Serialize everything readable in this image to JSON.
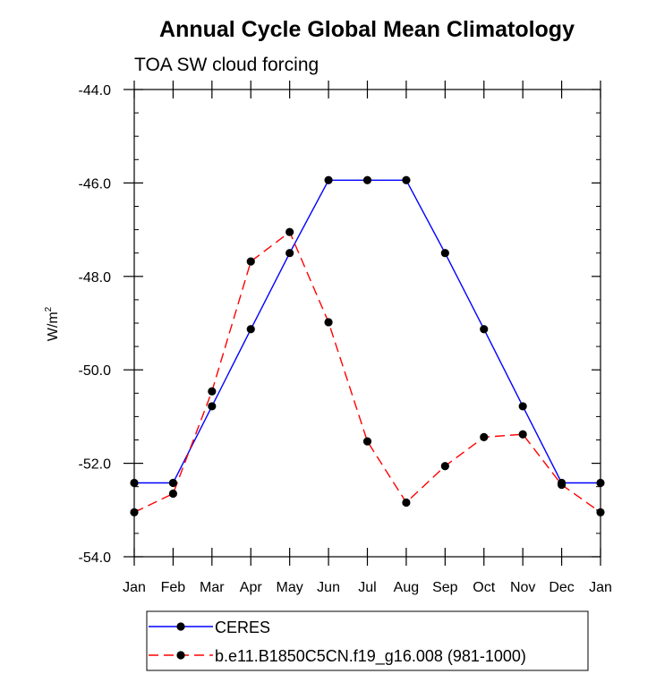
{
  "chart_data": {
    "type": "line",
    "title": "Annual Cycle Global Mean Climatology",
    "subtitle": "TOA SW cloud forcing",
    "ylabel": "W/m",
    "ylabel_sup": "2",
    "xlabel": "",
    "categories": [
      "Jan",
      "Feb",
      "Mar",
      "Apr",
      "May",
      "Jun",
      "Jul",
      "Aug",
      "Sep",
      "Oct",
      "Nov",
      "Dec",
      "Jan"
    ],
    "ylim": [
      -54.0,
      -44.0
    ],
    "yticks": [
      -54.0,
      -52.0,
      -50.0,
      -48.0,
      -46.0,
      -44.0
    ],
    "ytick_labels": [
      "-54.0",
      "-52.0",
      "-50.0",
      "-48.0",
      "-46.0",
      "-44.0"
    ],
    "grid": false,
    "legend_position": "bottom",
    "series": [
      {
        "name": "CERES",
        "color": "#0000ff",
        "style": "solid",
        "values": [
          -52.42,
          -52.42,
          -50.78,
          -49.13,
          -47.5,
          -45.94,
          -45.94,
          -45.94,
          -47.5,
          -49.13,
          -50.78,
          -52.42,
          -52.42
        ]
      },
      {
        "name": "b.e11.B1850C5CN.f19_g16.008 (981-1000)",
        "color": "#ff0000",
        "style": "dashed",
        "values": [
          -53.05,
          -52.65,
          -50.46,
          -47.68,
          -47.05,
          -48.98,
          -51.53,
          -52.84,
          -52.06,
          -51.44,
          -51.38,
          -52.46,
          -53.05
        ]
      }
    ]
  }
}
